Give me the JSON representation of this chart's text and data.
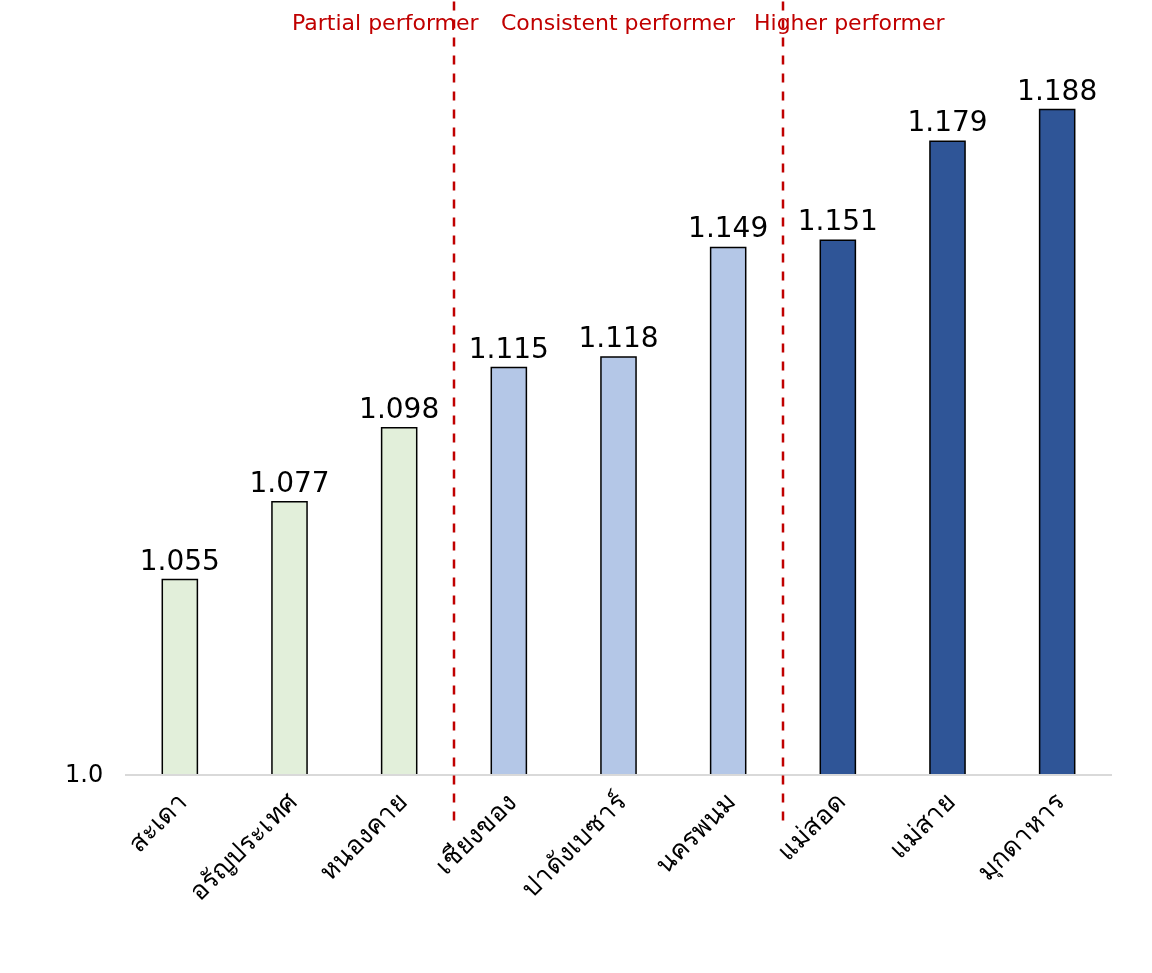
{
  "chart_data": {
    "type": "bar",
    "categories": [
      "สะเดา",
      "อรัญประเทศ",
      "หนองคาย",
      "เชียงของ",
      "ปาดังเบซาร์",
      "นครพนม",
      "แม่สอด",
      "แม่สาย",
      "มุกดาหาร"
    ],
    "values": [
      1.055,
      1.077,
      1.098,
      1.115,
      1.118,
      1.149,
      1.151,
      1.179,
      1.188
    ],
    "data_labels": true,
    "ylim": [
      1.0,
      1.219
    ],
    "colors": [
      "#e2efda",
      "#e2efda",
      "#e2efda",
      "#b4c7e7",
      "#b4c7e7",
      "#b4c7e7",
      "#2f5597",
      "#2f5597",
      "#2f5597"
    ],
    "annotations": [
      "Partial performer",
      "Consistent performer",
      "Higher performer",
      "1.0"
    ]
  }
}
